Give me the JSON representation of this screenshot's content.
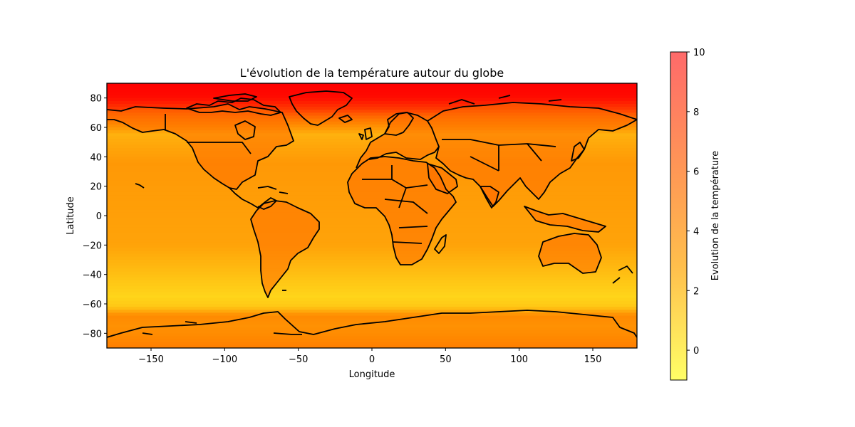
{
  "chart_data": {
    "type": "heatmap",
    "title": "L'évolution de la température autour du globe",
    "xlabel": "Longitude",
    "ylabel": "Latitude",
    "xlim": [
      -180,
      180
    ],
    "ylim": [
      -90,
      90
    ],
    "xticks": [
      -150,
      -100,
      -50,
      0,
      50,
      100,
      150
    ],
    "xtick_labels": [
      "−150",
      "−100",
      "−50",
      "0",
      "50",
      "100",
      "150"
    ],
    "yticks": [
      -80,
      -60,
      -40,
      -20,
      0,
      20,
      40,
      60,
      80
    ],
    "ytick_labels": [
      "−80",
      "−60",
      "−40",
      "−20",
      "0",
      "20",
      "40",
      "60",
      "80"
    ],
    "colorbar": {
      "label": "Evolution de la température",
      "range": [
        -1,
        10
      ],
      "ticks": [
        0,
        2,
        4,
        6,
        8,
        10
      ],
      "tick_labels": [
        "0",
        "2",
        "4",
        "6",
        "8",
        "10"
      ],
      "colors": [
        "#ffff66",
        "#ffbe4c",
        "#ff9656",
        "#ff6a6a"
      ]
    },
    "field_latitude_profile": {
      "latitudes": [
        90,
        80,
        72,
        65,
        55,
        45,
        35,
        20,
        0,
        -20,
        -35,
        -45,
        -55,
        -62,
        -68,
        -75,
        -85,
        -90
      ],
      "values": [
        9.2,
        9.0,
        8.2,
        6.8,
        5.2,
        5.6,
        5.9,
        5.8,
        5.7,
        5.6,
        5.0,
        4.6,
        4.2,
        4.6,
        6.3,
        6.1,
        6.4,
        6.6
      ]
    },
    "land_warming_anomaly": 1.3,
    "colormap_red_over_plot": [
      "#ffee22",
      "#ffbb11",
      "#ff8800",
      "#ff5500",
      "#ff0000"
    ]
  }
}
